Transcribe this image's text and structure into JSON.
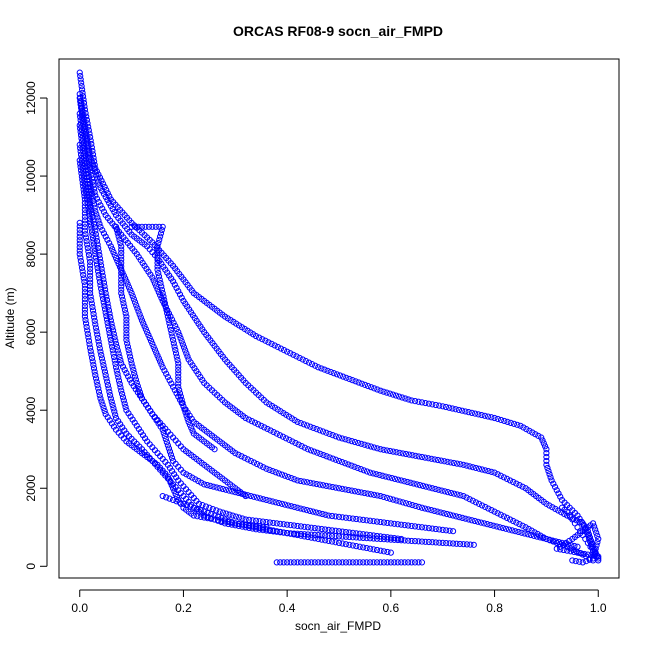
{
  "chart_data": {
    "type": "scatter",
    "title": "ORCAS RF08-9 socn_air_FMPD",
    "xlabel": "socn_air_FMPD",
    "ylabel": "Altitude (m)",
    "xlim": [
      -0.04,
      1.04
    ],
    "ylim": [
      -300,
      13000
    ],
    "x_ticks": [
      0.0,
      0.2,
      0.4,
      0.6,
      0.8,
      1.0
    ],
    "x_tick_labels": [
      "0.0",
      "0.2",
      "0.4",
      "0.6",
      "0.8",
      "1.0"
    ],
    "y_ticks": [
      0,
      2000,
      4000,
      6000,
      8000,
      10000,
      12000
    ],
    "y_tick_labels": [
      "0",
      "2000",
      "4000",
      "6000",
      "8000",
      "10000",
      "12000"
    ],
    "grid": false,
    "point_color": "#0000ff",
    "marker": "open-circle",
    "series": [
      {
        "values": [
          [
            0.0,
            12650
          ],
          [
            0.01,
            11700
          ],
          [
            0.02,
            11000
          ],
          [
            0.03,
            10200
          ],
          [
            0.06,
            9400
          ],
          [
            0.1,
            8800
          ],
          [
            0.14,
            8300
          ],
          [
            0.18,
            7700
          ],
          [
            0.22,
            7000
          ],
          [
            0.28,
            6400
          ],
          [
            0.34,
            5900
          ],
          [
            0.4,
            5500
          ],
          [
            0.46,
            5100
          ],
          [
            0.52,
            4800
          ],
          [
            0.58,
            4500
          ],
          [
            0.64,
            4250
          ],
          [
            0.7,
            4100
          ],
          [
            0.75,
            3950
          ],
          [
            0.8,
            3800
          ],
          [
            0.85,
            3600
          ],
          [
            0.89,
            3300
          ],
          [
            0.9,
            3000
          ],
          [
            0.9,
            2600
          ],
          [
            0.91,
            2200
          ],
          [
            0.93,
            1700
          ],
          [
            0.96,
            1300
          ],
          [
            0.98,
            900
          ],
          [
            0.99,
            500
          ],
          [
            1.0,
            200
          ]
        ]
      },
      {
        "values": [
          [
            0.0,
            12100
          ],
          [
            0.01,
            11300
          ],
          [
            0.02,
            10500
          ],
          [
            0.04,
            9700
          ],
          [
            0.07,
            9000
          ],
          [
            0.1,
            8500
          ],
          [
            0.13,
            8200
          ],
          [
            0.15,
            7900
          ],
          [
            0.18,
            7300
          ],
          [
            0.2,
            6800
          ],
          [
            0.24,
            6000
          ],
          [
            0.28,
            5300
          ],
          [
            0.32,
            4700
          ],
          [
            0.36,
            4200
          ],
          [
            0.42,
            3700
          ],
          [
            0.5,
            3300
          ],
          [
            0.58,
            3000
          ],
          [
            0.66,
            2800
          ],
          [
            0.74,
            2600
          ],
          [
            0.8,
            2400
          ],
          [
            0.86,
            2000
          ],
          [
            0.9,
            1600
          ],
          [
            0.94,
            1300
          ],
          [
            0.97,
            1100
          ],
          [
            0.98,
            800
          ],
          [
            0.99,
            400
          ],
          [
            1.0,
            150
          ]
        ]
      },
      {
        "values": [
          [
            0.0,
            12000
          ],
          [
            0.01,
            11000
          ],
          [
            0.02,
            10200
          ],
          [
            0.03,
            9500
          ],
          [
            0.05,
            9000
          ],
          [
            0.08,
            8500
          ],
          [
            0.11,
            8000
          ],
          [
            0.14,
            7400
          ],
          [
            0.16,
            6800
          ],
          [
            0.19,
            6000
          ],
          [
            0.21,
            5300
          ],
          [
            0.24,
            4700
          ],
          [
            0.28,
            4200
          ],
          [
            0.32,
            3800
          ],
          [
            0.38,
            3400
          ],
          [
            0.44,
            3000
          ],
          [
            0.5,
            2700
          ],
          [
            0.56,
            2400
          ],
          [
            0.62,
            2200
          ],
          [
            0.68,
            2000
          ],
          [
            0.74,
            1800
          ],
          [
            0.8,
            1400
          ],
          [
            0.86,
            1000
          ],
          [
            0.9,
            700
          ],
          [
            0.94,
            500
          ],
          [
            0.97,
            300
          ],
          [
            0.99,
            150
          ]
        ]
      },
      {
        "values": [
          [
            0.0,
            11600
          ],
          [
            0.01,
            10600
          ],
          [
            0.02,
            9800
          ],
          [
            0.03,
            9100
          ],
          [
            0.04,
            8700
          ],
          [
            0.06,
            8200
          ],
          [
            0.08,
            7600
          ],
          [
            0.1,
            7000
          ],
          [
            0.12,
            6300
          ],
          [
            0.14,
            5700
          ],
          [
            0.16,
            5100
          ],
          [
            0.18,
            4600
          ],
          [
            0.2,
            4100
          ],
          [
            0.22,
            3700
          ],
          [
            0.26,
            3300
          ],
          [
            0.3,
            2900
          ],
          [
            0.36,
            2500
          ],
          [
            0.42,
            2200
          ],
          [
            0.5,
            2000
          ],
          [
            0.58,
            1800
          ],
          [
            0.66,
            1500
          ],
          [
            0.72,
            1300
          ],
          [
            0.78,
            1100
          ],
          [
            0.84,
            900
          ],
          [
            0.9,
            700
          ],
          [
            0.96,
            500
          ]
        ]
      },
      {
        "values": [
          [
            0.0,
            11300
          ],
          [
            0.01,
            10300
          ],
          [
            0.02,
            9300
          ],
          [
            0.03,
            8600
          ],
          [
            0.04,
            7800
          ],
          [
            0.05,
            7000
          ],
          [
            0.06,
            6300
          ],
          [
            0.07,
            5700
          ],
          [
            0.08,
            5200
          ],
          [
            0.1,
            4700
          ],
          [
            0.12,
            4300
          ],
          [
            0.14,
            3900
          ],
          [
            0.16,
            3500
          ],
          [
            0.17,
            3100
          ],
          [
            0.18,
            2700
          ],
          [
            0.2,
            2400
          ],
          [
            0.24,
            2100
          ],
          [
            0.3,
            1900
          ],
          [
            0.36,
            1700
          ],
          [
            0.42,
            1500
          ],
          [
            0.48,
            1300
          ],
          [
            0.54,
            1200
          ],
          [
            0.6,
            1100
          ],
          [
            0.66,
            1000
          ],
          [
            0.72,
            900
          ]
        ]
      },
      {
        "values": [
          [
            0.0,
            10800
          ],
          [
            0.01,
            9800
          ],
          [
            0.02,
            8900
          ],
          [
            0.03,
            8000
          ],
          [
            0.04,
            7200
          ],
          [
            0.05,
            6500
          ],
          [
            0.06,
            5800
          ],
          [
            0.07,
            5100
          ],
          [
            0.08,
            4500
          ],
          [
            0.09,
            4000
          ],
          [
            0.11,
            3600
          ],
          [
            0.13,
            3200
          ],
          [
            0.15,
            2900
          ],
          [
            0.17,
            2600
          ],
          [
            0.19,
            2200
          ],
          [
            0.21,
            1900
          ],
          [
            0.23,
            1600
          ],
          [
            0.27,
            1400
          ],
          [
            0.32,
            1200
          ],
          [
            0.38,
            1100
          ],
          [
            0.44,
            1000
          ],
          [
            0.5,
            900
          ],
          [
            0.56,
            800
          ],
          [
            0.62,
            700
          ]
        ]
      },
      {
        "values": [
          [
            0.0,
            10400
          ],
          [
            0.01,
            9400
          ],
          [
            0.01,
            8600
          ],
          [
            0.02,
            7800
          ],
          [
            0.02,
            7000
          ],
          [
            0.03,
            6200
          ],
          [
            0.04,
            5500
          ],
          [
            0.05,
            4900
          ],
          [
            0.06,
            4300
          ],
          [
            0.07,
            3800
          ],
          [
            0.09,
            3400
          ],
          [
            0.12,
            3000
          ],
          [
            0.14,
            2700
          ],
          [
            0.16,
            2400
          ],
          [
            0.18,
            2100
          ],
          [
            0.2,
            1800
          ],
          [
            0.22,
            1500
          ],
          [
            0.24,
            1300
          ],
          [
            0.28,
            1100
          ],
          [
            0.34,
            950
          ],
          [
            0.4,
            850
          ],
          [
            0.46,
            800
          ],
          [
            0.52,
            750
          ],
          [
            0.58,
            700
          ],
          [
            0.64,
            650
          ],
          [
            0.7,
            600
          ],
          [
            0.76,
            550
          ]
        ]
      },
      {
        "values": [
          [
            0.0,
            8800
          ],
          [
            0.0,
            8000
          ],
          [
            0.01,
            7200
          ],
          [
            0.01,
            6400
          ],
          [
            0.02,
            5600
          ],
          [
            0.03,
            4900
          ],
          [
            0.04,
            4300
          ],
          [
            0.05,
            3900
          ],
          [
            0.07,
            3500
          ],
          [
            0.09,
            3200
          ],
          [
            0.12,
            2900
          ],
          [
            0.15,
            2600
          ],
          [
            0.17,
            2300
          ],
          [
            0.18,
            2000
          ],
          [
            0.19,
            1700
          ],
          [
            0.2,
            1500
          ],
          [
            0.22,
            1300
          ],
          [
            0.26,
            1200
          ],
          [
            0.3,
            1100
          ],
          [
            0.36,
            1000
          ]
        ]
      },
      {
        "values": [
          [
            0.1,
            8700
          ],
          [
            0.12,
            8700
          ],
          [
            0.14,
            8700
          ],
          [
            0.16,
            8700
          ],
          [
            0.15,
            8200
          ],
          [
            0.15,
            7600
          ],
          [
            0.16,
            7000
          ],
          [
            0.17,
            6400
          ],
          [
            0.18,
            5800
          ],
          [
            0.19,
            5200
          ],
          [
            0.19,
            4600
          ],
          [
            0.2,
            4100
          ],
          [
            0.21,
            3700
          ],
          [
            0.22,
            3400
          ],
          [
            0.24,
            3200
          ],
          [
            0.26,
            3000
          ]
        ]
      },
      {
        "values": [
          [
            0.07,
            8700
          ],
          [
            0.08,
            8200
          ],
          [
            0.08,
            7600
          ],
          [
            0.08,
            7000
          ],
          [
            0.09,
            6400
          ],
          [
            0.09,
            5800
          ],
          [
            0.1,
            5200
          ],
          [
            0.11,
            4700
          ],
          [
            0.12,
            4300
          ],
          [
            0.14,
            3900
          ],
          [
            0.16,
            3600
          ],
          [
            0.18,
            3300
          ],
          [
            0.2,
            3000
          ],
          [
            0.22,
            2800
          ],
          [
            0.24,
            2600
          ],
          [
            0.26,
            2400
          ],
          [
            0.28,
            2200
          ],
          [
            0.3,
            2000
          ],
          [
            0.32,
            1800
          ]
        ]
      },
      {
        "values": [
          [
            0.38,
            100
          ],
          [
            0.4,
            100
          ],
          [
            0.42,
            100
          ],
          [
            0.44,
            100
          ],
          [
            0.46,
            100
          ],
          [
            0.48,
            100
          ],
          [
            0.5,
            100
          ],
          [
            0.52,
            100
          ],
          [
            0.54,
            100
          ],
          [
            0.56,
            100
          ],
          [
            0.58,
            100
          ],
          [
            0.6,
            100
          ],
          [
            0.62,
            100
          ],
          [
            0.64,
            100
          ],
          [
            0.66,
            100
          ]
        ]
      },
      {
        "values": [
          [
            0.16,
            1800
          ],
          [
            0.18,
            1700
          ],
          [
            0.2,
            1600
          ],
          [
            0.22,
            1500
          ],
          [
            0.24,
            1400
          ],
          [
            0.26,
            1300
          ],
          [
            0.28,
            1200
          ],
          [
            0.3,
            1100
          ],
          [
            0.32,
            1050
          ],
          [
            0.34,
            1000
          ],
          [
            0.36,
            950
          ],
          [
            0.38,
            900
          ],
          [
            0.4,
            850
          ],
          [
            0.42,
            800
          ],
          [
            0.44,
            750
          ],
          [
            0.46,
            700
          ],
          [
            0.48,
            650
          ],
          [
            0.5,
            600
          ],
          [
            0.52,
            550
          ],
          [
            0.54,
            500
          ],
          [
            0.56,
            450
          ],
          [
            0.58,
            400
          ],
          [
            0.6,
            350
          ]
        ]
      },
      {
        "values": [
          [
            0.93,
            1500
          ],
          [
            0.94,
            1400
          ],
          [
            0.95,
            1200
          ],
          [
            0.96,
            1000
          ],
          [
            0.97,
            800
          ],
          [
            0.98,
            600
          ],
          [
            0.99,
            400
          ],
          [
            1.0,
            250
          ],
          [
            0.98,
            300
          ],
          [
            0.96,
            350
          ],
          [
            0.94,
            400
          ],
          [
            0.92,
            450
          ],
          [
            0.95,
            700
          ],
          [
            0.97,
            900
          ],
          [
            0.99,
            1100
          ],
          [
            1.0,
            700
          ],
          [
            0.99,
            200
          ],
          [
            0.97,
            100
          ],
          [
            0.95,
            150
          ]
        ]
      }
    ]
  }
}
